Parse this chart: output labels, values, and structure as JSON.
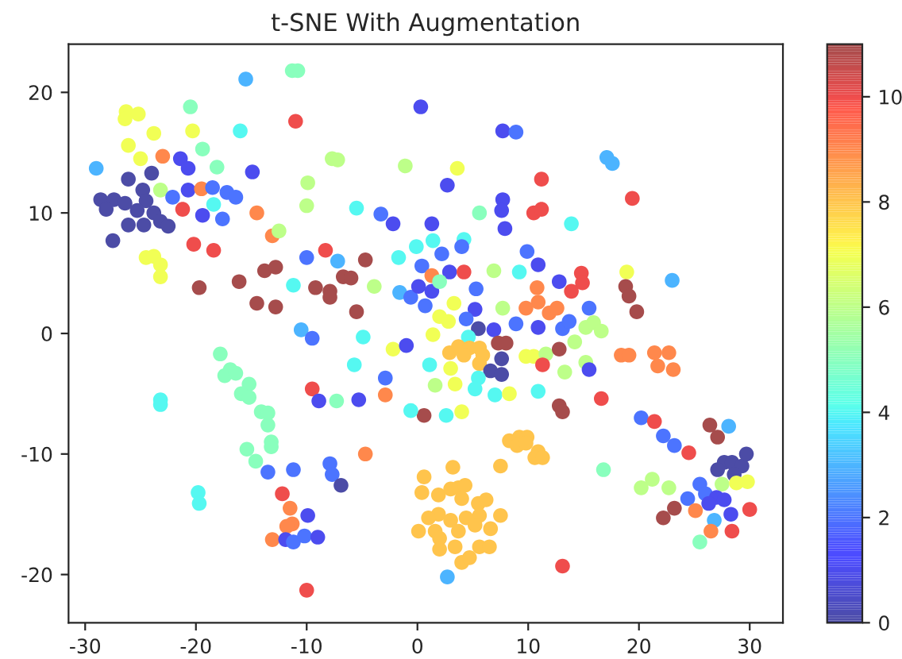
{
  "chart_data": {
    "type": "scatter",
    "title": "t-SNE With Augmentation",
    "marker": "circle",
    "x": [
      0.3,
      -15.5,
      -11.3,
      -10.8,
      -11,
      -26.3,
      -26.4,
      -25.2,
      -20.5,
      -16,
      -23.8,
      -26.1,
      -20.3,
      -23,
      -19.4,
      -25,
      -21.4,
      -20.7,
      -29,
      -26.1,
      -24,
      -24.8,
      -28.6,
      -27.4,
      -26.4,
      -28.1,
      -24.5,
      -25.3,
      -23.8,
      -26.1,
      -24.7,
      -23.2,
      -22.5,
      -27.5,
      -23.2,
      -22.1,
      -20.7,
      -19.5,
      -18.5,
      -17.2,
      -16.4,
      -19.4,
      -18.4,
      -17.6,
      -21.2,
      -14.5,
      -13.1,
      -12.5,
      -14.9,
      -18.1,
      -24.5,
      -23.8,
      -23.2,
      -23.2,
      -20.2,
      -18.4,
      -19.7,
      -16.1,
      -13.8,
      -12.8,
      -14.5,
      -12.8,
      -9.9,
      -10,
      -7.7,
      -7.2,
      -1.1,
      -5.5,
      -3.3,
      -2.2,
      -8.3,
      -10,
      -7.2,
      -4.7,
      -11.2,
      -9.2,
      -7.9,
      -7.9,
      -6.7,
      -6,
      -5.5,
      -3.9,
      -1.7,
      -1.6,
      -0.6,
      -10.5,
      -9.5,
      -4.9,
      7.7,
      8.9,
      17.1,
      17.6,
      3.6,
      11.2,
      19.4,
      2.7,
      7.7,
      7.6,
      7.9,
      5.6,
      10.5,
      11.2,
      13.9,
      1.3,
      -0.1,
      1.4,
      4.2,
      4,
      2.2,
      0.4,
      1.3,
      2.9,
      4.2,
      6.9,
      9.2,
      9.9,
      10.9,
      0.1,
      1.3,
      2,
      5.3,
      3.3,
      0.7,
      10.8,
      10.9,
      12.8,
      14.8,
      14.9,
      13.9,
      18.9,
      18.8,
      19.1,
      19.8,
      23,
      7.7,
      9.8,
      11.9,
      12.6,
      15.5,
      5.2,
      4.4,
      2,
      2.8,
      5.5,
      6.9,
      8.9,
      10.9,
      13.1,
      13.7,
      15.2,
      15.9,
      16.6,
      1.4,
      14.2,
      4.6,
      2.9,
      3.7,
      4.7,
      5.6,
      4.2,
      5.9,
      5.6,
      7.3,
      8,
      7.6,
      6.6,
      7.6,
      1.1,
      3,
      5.5,
      5.2,
      3.4,
      1.6,
      7,
      8.3,
      10.9,
      9.8,
      10.5,
      11.6,
      12.8,
      11.3,
      13.3,
      15.2,
      15.5,
      18.4,
      19.1,
      21.4,
      22.7,
      21.7,
      23.1,
      16.6,
      12.8,
      13.1,
      0.6,
      2.6,
      4,
      -0.6,
      20.2,
      21.4,
      22.2,
      23.2,
      24.5,
      26.4,
      27.1,
      28.1,
      27.7,
      28.4,
      29.3,
      29.7,
      27.1,
      28.6,
      27.5,
      28.8,
      29.8,
      25.5,
      26,
      27,
      27.7,
      24.4,
      26.3,
      20.2,
      21.2,
      22.7,
      23.2,
      22.2,
      25.1,
      26.8,
      28.3,
      30,
      26.5,
      28.4,
      25.5,
      16.8,
      8.3,
      9.2,
      9.9,
      9,
      10.9,
      10.6,
      11.3,
      7.5,
      9.8,
      0.6,
      3.2,
      0.4,
      1.9,
      3,
      3.7,
      4.3,
      4,
      5.5,
      6.2,
      5.6,
      1.9,
      1,
      3,
      4.4,
      5.2,
      7.5,
      6.6,
      0.1,
      1.6,
      2,
      3.7,
      3.4,
      5.6,
      6.5,
      4,
      4.7,
      2,
      2.7,
      13.1,
      -2.2,
      -1,
      -5.7,
      -2.9,
      -2.9,
      -9.5,
      -8.9,
      -7.3,
      -5.3,
      -4.7,
      -17.8,
      -16.9,
      -17.4,
      -16.4,
      -15.2,
      -15.9,
      -15.2,
      -14.1,
      -13.5,
      -13.5,
      -13.2,
      -13.2,
      -15.4,
      -14.6,
      -23.2,
      -23.2,
      -19.8,
      -19.7,
      -13.5,
      -11.2,
      -7.9,
      -7.7,
      -6.9,
      -12.2,
      -11.5,
      -9.9,
      -11.3,
      -11.8,
      -13.1,
      -11.9,
      -11.2,
      -10.2,
      -9,
      -10
    ],
    "values": [
      18.8,
      21.1,
      21.8,
      21.8,
      17.6,
      18.4,
      17.8,
      18.2,
      18.8,
      16.8,
      16.6,
      15.6,
      16.8,
      14.7,
      15.3,
      14.5,
      14.5,
      13.7,
      13.7,
      12.8,
      13.3,
      11.9,
      11.1,
      11.1,
      10.8,
      10.3,
      11,
      10.2,
      10,
      9,
      9,
      9.3,
      8.9,
      7.7,
      11.9,
      11.3,
      11.9,
      12,
      12.1,
      11.7,
      11.3,
      9.8,
      10.7,
      9.5,
      10.3,
      10,
      8.1,
      8.5,
      13.4,
      13.8,
      6.3,
      6.4,
      5.7,
      4.7,
      7.4,
      6.9,
      3.8,
      4.3,
      5.2,
      5.5,
      2.5,
      2.2,
      12.5,
      10.6,
      14.5,
      14.4,
      13.9,
      10.4,
      9.9,
      9.1,
      6.9,
      6.3,
      6,
      6.1,
      4,
      3.8,
      3.5,
      3,
      4.7,
      4.6,
      1.8,
      3.9,
      6.3,
      3.4,
      3,
      0.3,
      -0.4,
      -0.3,
      16.8,
      16.7,
      14.6,
      14.1,
      13.7,
      12.8,
      11.2,
      12.3,
      11.1,
      10.2,
      8.7,
      10,
      10,
      10.3,
      9.1,
      9.1,
      7.2,
      7.7,
      7.8,
      7.2,
      6.6,
      5.6,
      4.8,
      5.1,
      5.1,
      5.2,
      5.1,
      6.8,
      5.7,
      3.9,
      3.5,
      4.3,
      3.7,
      2.5,
      2.3,
      3.8,
      2.6,
      4.3,
      5,
      4.2,
      3.5,
      5.1,
      3.9,
      3.1,
      1.8,
      4.4,
      2.1,
      2.1,
      1.7,
      2.1,
      2.1,
      2,
      1.2,
      1.4,
      1,
      0.4,
      0.3,
      0.8,
      0.5,
      0.4,
      1,
      0.5,
      0.9,
      0.2,
      -0.1,
      -0.7,
      -0.3,
      -1.6,
      -1.1,
      -1.2,
      -1.2,
      -1.8,
      -1.8,
      -2.5,
      -0.8,
      -0.8,
      -2.1,
      -3.1,
      -3.4,
      -2.6,
      -2.9,
      -3.7,
      -4.6,
      -4.2,
      -4.3,
      -5.1,
      -5,
      -4.8,
      -1.9,
      -1.9,
      -1.7,
      -1.3,
      -2.6,
      -3.2,
      -2.4,
      -3,
      -1.8,
      -1.8,
      -1.6,
      -1.6,
      -2.7,
      -3,
      -5.4,
      -6,
      -6.5,
      -6.8,
      -6.8,
      -6.5,
      -6.4,
      -7,
      -7.3,
      -8.5,
      -9.3,
      -9.9,
      -7.6,
      -8.6,
      -7.7,
      -10.7,
      -10.7,
      -11,
      -10,
      -11.3,
      -11.7,
      -12.5,
      -12.4,
      -12.3,
      -12.5,
      -13.3,
      -13.6,
      -13.8,
      -13.7,
      -14.1,
      -12.8,
      -12.1,
      -12.8,
      -14.5,
      -15.3,
      -14.7,
      -15.5,
      -15,
      -14.6,
      -16.4,
      -16.4,
      -17.3,
      -11.3,
      -8.9,
      -8.6,
      -8.6,
      -9.3,
      -9.8,
      -10.3,
      -10.3,
      -11,
      -9.1,
      -11.9,
      -11.1,
      -13.2,
      -13.4,
      -12.9,
      -12.8,
      -12.6,
      -13.7,
      -14.1,
      -13.8,
      -15.1,
      -15,
      -15.3,
      -15.5,
      -15.3,
      -15.9,
      -15.1,
      -16.2,
      -16.4,
      -16.4,
      -17,
      -16.4,
      -17.7,
      -17.7,
      -17.7,
      -19,
      -18.6,
      -17.9,
      -20.2,
      -19.3,
      -1.3,
      -1,
      -2.6,
      -3.7,
      -5.1,
      -4.6,
      -5.6,
      -5.6,
      -5.5,
      -10,
      -1.7,
      -3,
      -3.5,
      -3.3,
      -4.2,
      -5,
      -5.3,
      -6.5,
      -6.6,
      -7.6,
      -9,
      -9.4,
      -9.6,
      -10.6,
      -5.5,
      -5.9,
      -13.2,
      -14.1,
      -11.5,
      -11.3,
      -10.8,
      -11.7,
      -12.6,
      -13.3,
      -14.5,
      -15.1,
      -15.8,
      -16,
      -17.1,
      -17.1,
      -17.3,
      -16.8,
      -16.9,
      -21.3
    ],
    "cvalues": [
      1,
      3,
      5,
      5,
      10,
      7,
      7,
      7,
      5,
      4,
      7,
      7,
      7,
      9,
      5,
      7,
      1,
      1,
      3,
      0,
      0,
      0,
      0,
      0,
      0,
      0,
      0,
      0,
      0,
      0,
      0,
      0,
      0,
      0,
      6,
      2,
      1,
      9,
      2,
      2,
      2,
      1,
      4,
      2,
      10,
      9,
      9,
      6,
      1,
      5,
      7,
      7,
      7,
      7,
      10,
      10,
      11,
      11,
      11,
      11,
      11,
      11,
      6,
      6,
      6,
      6,
      6,
      4,
      2,
      1,
      10,
      2,
      3,
      11,
      4,
      11,
      11,
      11,
      11,
      11,
      11,
      6,
      4,
      3,
      2,
      3,
      2,
      4,
      1,
      2,
      3,
      3,
      7,
      10,
      10,
      1,
      1,
      1,
      1,
      5,
      10,
      10,
      4,
      1,
      4,
      4,
      4,
      2,
      2,
      2,
      9,
      1,
      10,
      6,
      4,
      2,
      1,
      1,
      1,
      5,
      2,
      7,
      2,
      9,
      9,
      1,
      10,
      10,
      10,
      7,
      11,
      11,
      11,
      3,
      6,
      9,
      9,
      9,
      2,
      1,
      2,
      7,
      7,
      0,
      1,
      2,
      1,
      2,
      2,
      6,
      6,
      6,
      7,
      6,
      4,
      8,
      8,
      8,
      8,
      8,
      8,
      8,
      11,
      11,
      0,
      0,
      0,
      4,
      7,
      4,
      4,
      7,
      6,
      4,
      7,
      4,
      7,
      7,
      6,
      11,
      10,
      6,
      6,
      1,
      9,
      9,
      9,
      9,
      9,
      9,
      10,
      11,
      11,
      11,
      4,
      7,
      4,
      2,
      10,
      2,
      2,
      10,
      11,
      11,
      3,
      0,
      0,
      0,
      0,
      0,
      0,
      6,
      7,
      7,
      2,
      2,
      1,
      1,
      2,
      1,
      6,
      6,
      6,
      11,
      11,
      9,
      3,
      1,
      10,
      9,
      10,
      5,
      5,
      8,
      8,
      8,
      8,
      8,
      8,
      8,
      8,
      8,
      8,
      8,
      8,
      8,
      8,
      8,
      8,
      8,
      8,
      8,
      8,
      8,
      8,
      8,
      8,
      8,
      8,
      8,
      8,
      8,
      8,
      8,
      8,
      8,
      8,
      8,
      8,
      8,
      3,
      10,
      7,
      1,
      4,
      2,
      9,
      10,
      1,
      5,
      1,
      9,
      5,
      5,
      5,
      5,
      5,
      5,
      5,
      5,
      5,
      5,
      5,
      5,
      5,
      5,
      4,
      4,
      4,
      4,
      2,
      2,
      2,
      2,
      0,
      10,
      9,
      1,
      9,
      9,
      9,
      1,
      2,
      2,
      1,
      10
    ],
    "xlim": [
      -31.5,
      33
    ],
    "ylim": [
      -24,
      24
    ],
    "xticks": [
      -30,
      -20,
      -10,
      0,
      10,
      20,
      30
    ],
    "yticks": [
      -20,
      -10,
      0,
      10,
      20
    ],
    "clim": [
      0,
      11
    ],
    "cticks": [
      0,
      2,
      4,
      6,
      8,
      10
    ]
  }
}
